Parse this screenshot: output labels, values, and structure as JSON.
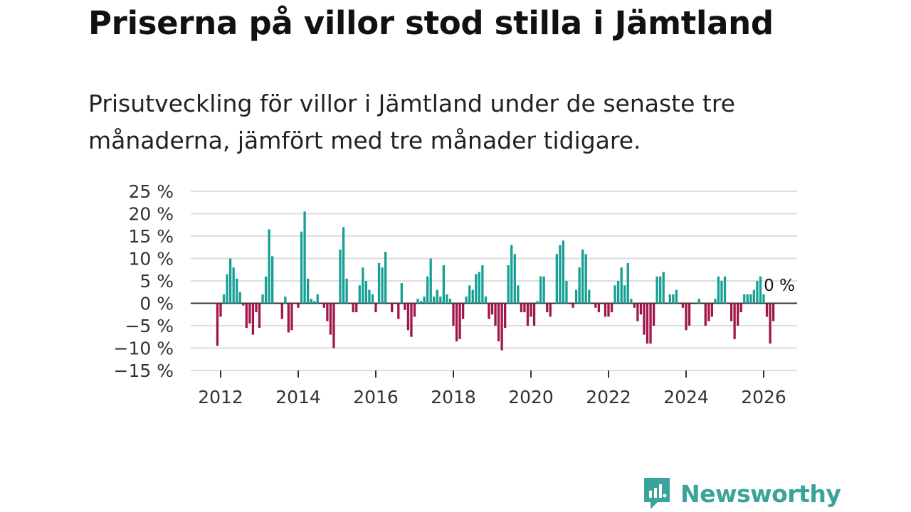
{
  "header": {
    "title": "Priserna på villor stod stilla i Jämtland",
    "subtitle": "Prisutveckling för villor i Jämtland under de senaste tre månaderna, jämfört med tre månader tidigare."
  },
  "brand": {
    "name": "Newsworthy",
    "color": "#3aa39a"
  },
  "chart_data": {
    "type": "bar",
    "title": "Priserna på villor stod stilla i Jämtland",
    "subtitle": "Prisutveckling för villor i Jämtland under de senaste tre månaderna, jämfört med tre månader tidigare.",
    "xlabel": "",
    "ylabel": "",
    "ylim": [
      -15,
      25
    ],
    "yticks": [
      25,
      20,
      15,
      10,
      5,
      0,
      -5,
      -10,
      -15
    ],
    "ytick_labels": [
      "25 %",
      "20 %",
      "15 %",
      "10 %",
      "5 %",
      "0 %",
      "−5 %",
      "−10 %",
      "−15 %"
    ],
    "xticks": [
      "2012",
      "2014",
      "2016",
      "2018",
      "2020",
      "2022",
      "2024",
      "2026"
    ],
    "x_start": "2011-12",
    "frequency": "monthly",
    "grid": true,
    "positive_color": "#16a095",
    "negative_color": "#a0164a",
    "last_value_label": "0 %",
    "values": [
      -9.5,
      -3,
      2,
      6.5,
      10,
      8,
      5.5,
      2.5,
      -0.5,
      -5.5,
      -4.5,
      -7,
      -2,
      -5.5,
      2,
      6,
      16.5,
      10.5,
      0,
      0,
      -3.5,
      1.5,
      -6.5,
      -6,
      0,
      -1,
      16,
      20.5,
      5.5,
      1,
      0.5,
      2,
      0,
      -1,
      -4,
      -7,
      -10,
      0,
      12,
      17,
      5.5,
      0,
      -2,
      -2,
      4,
      8,
      5,
      3,
      2,
      -2,
      9,
      8,
      11.5,
      0,
      -2,
      0,
      -3.5,
      4.5,
      -1.5,
      -6,
      -7.5,
      -3,
      1,
      0.5,
      1.5,
      6,
      10,
      1.5,
      3,
      1.5,
      8.5,
      2,
      1,
      -5,
      -8.5,
      -8,
      -3.5,
      1.5,
      4,
      3,
      6.5,
      7,
      8.5,
      1.5,
      -3.5,
      -2.5,
      -5,
      -8.5,
      -10.5,
      -5.5,
      8.5,
      13,
      11,
      4,
      -2,
      -2,
      -5,
      -3,
      -5,
      0.5,
      6,
      6,
      -2,
      -3,
      0,
      11,
      13,
      14,
      5,
      0,
      -1,
      3,
      8,
      12,
      11,
      3,
      0,
      -1,
      -2,
      0,
      -3,
      -3,
      -2,
      4,
      5,
      8,
      4,
      9,
      1,
      -1,
      -4,
      -2.5,
      -7,
      -9,
      -9,
      -5,
      6,
      6,
      7,
      0,
      2,
      2,
      3,
      0,
      -1,
      -6,
      -5,
      0,
      0,
      1,
      0,
      -5,
      -4,
      -3,
      1,
      6,
      5,
      6,
      0,
      -4,
      -8,
      -5,
      -2,
      2,
      2,
      2,
      3,
      5,
      6,
      2,
      -3,
      -9,
      -4,
      0
    ]
  }
}
